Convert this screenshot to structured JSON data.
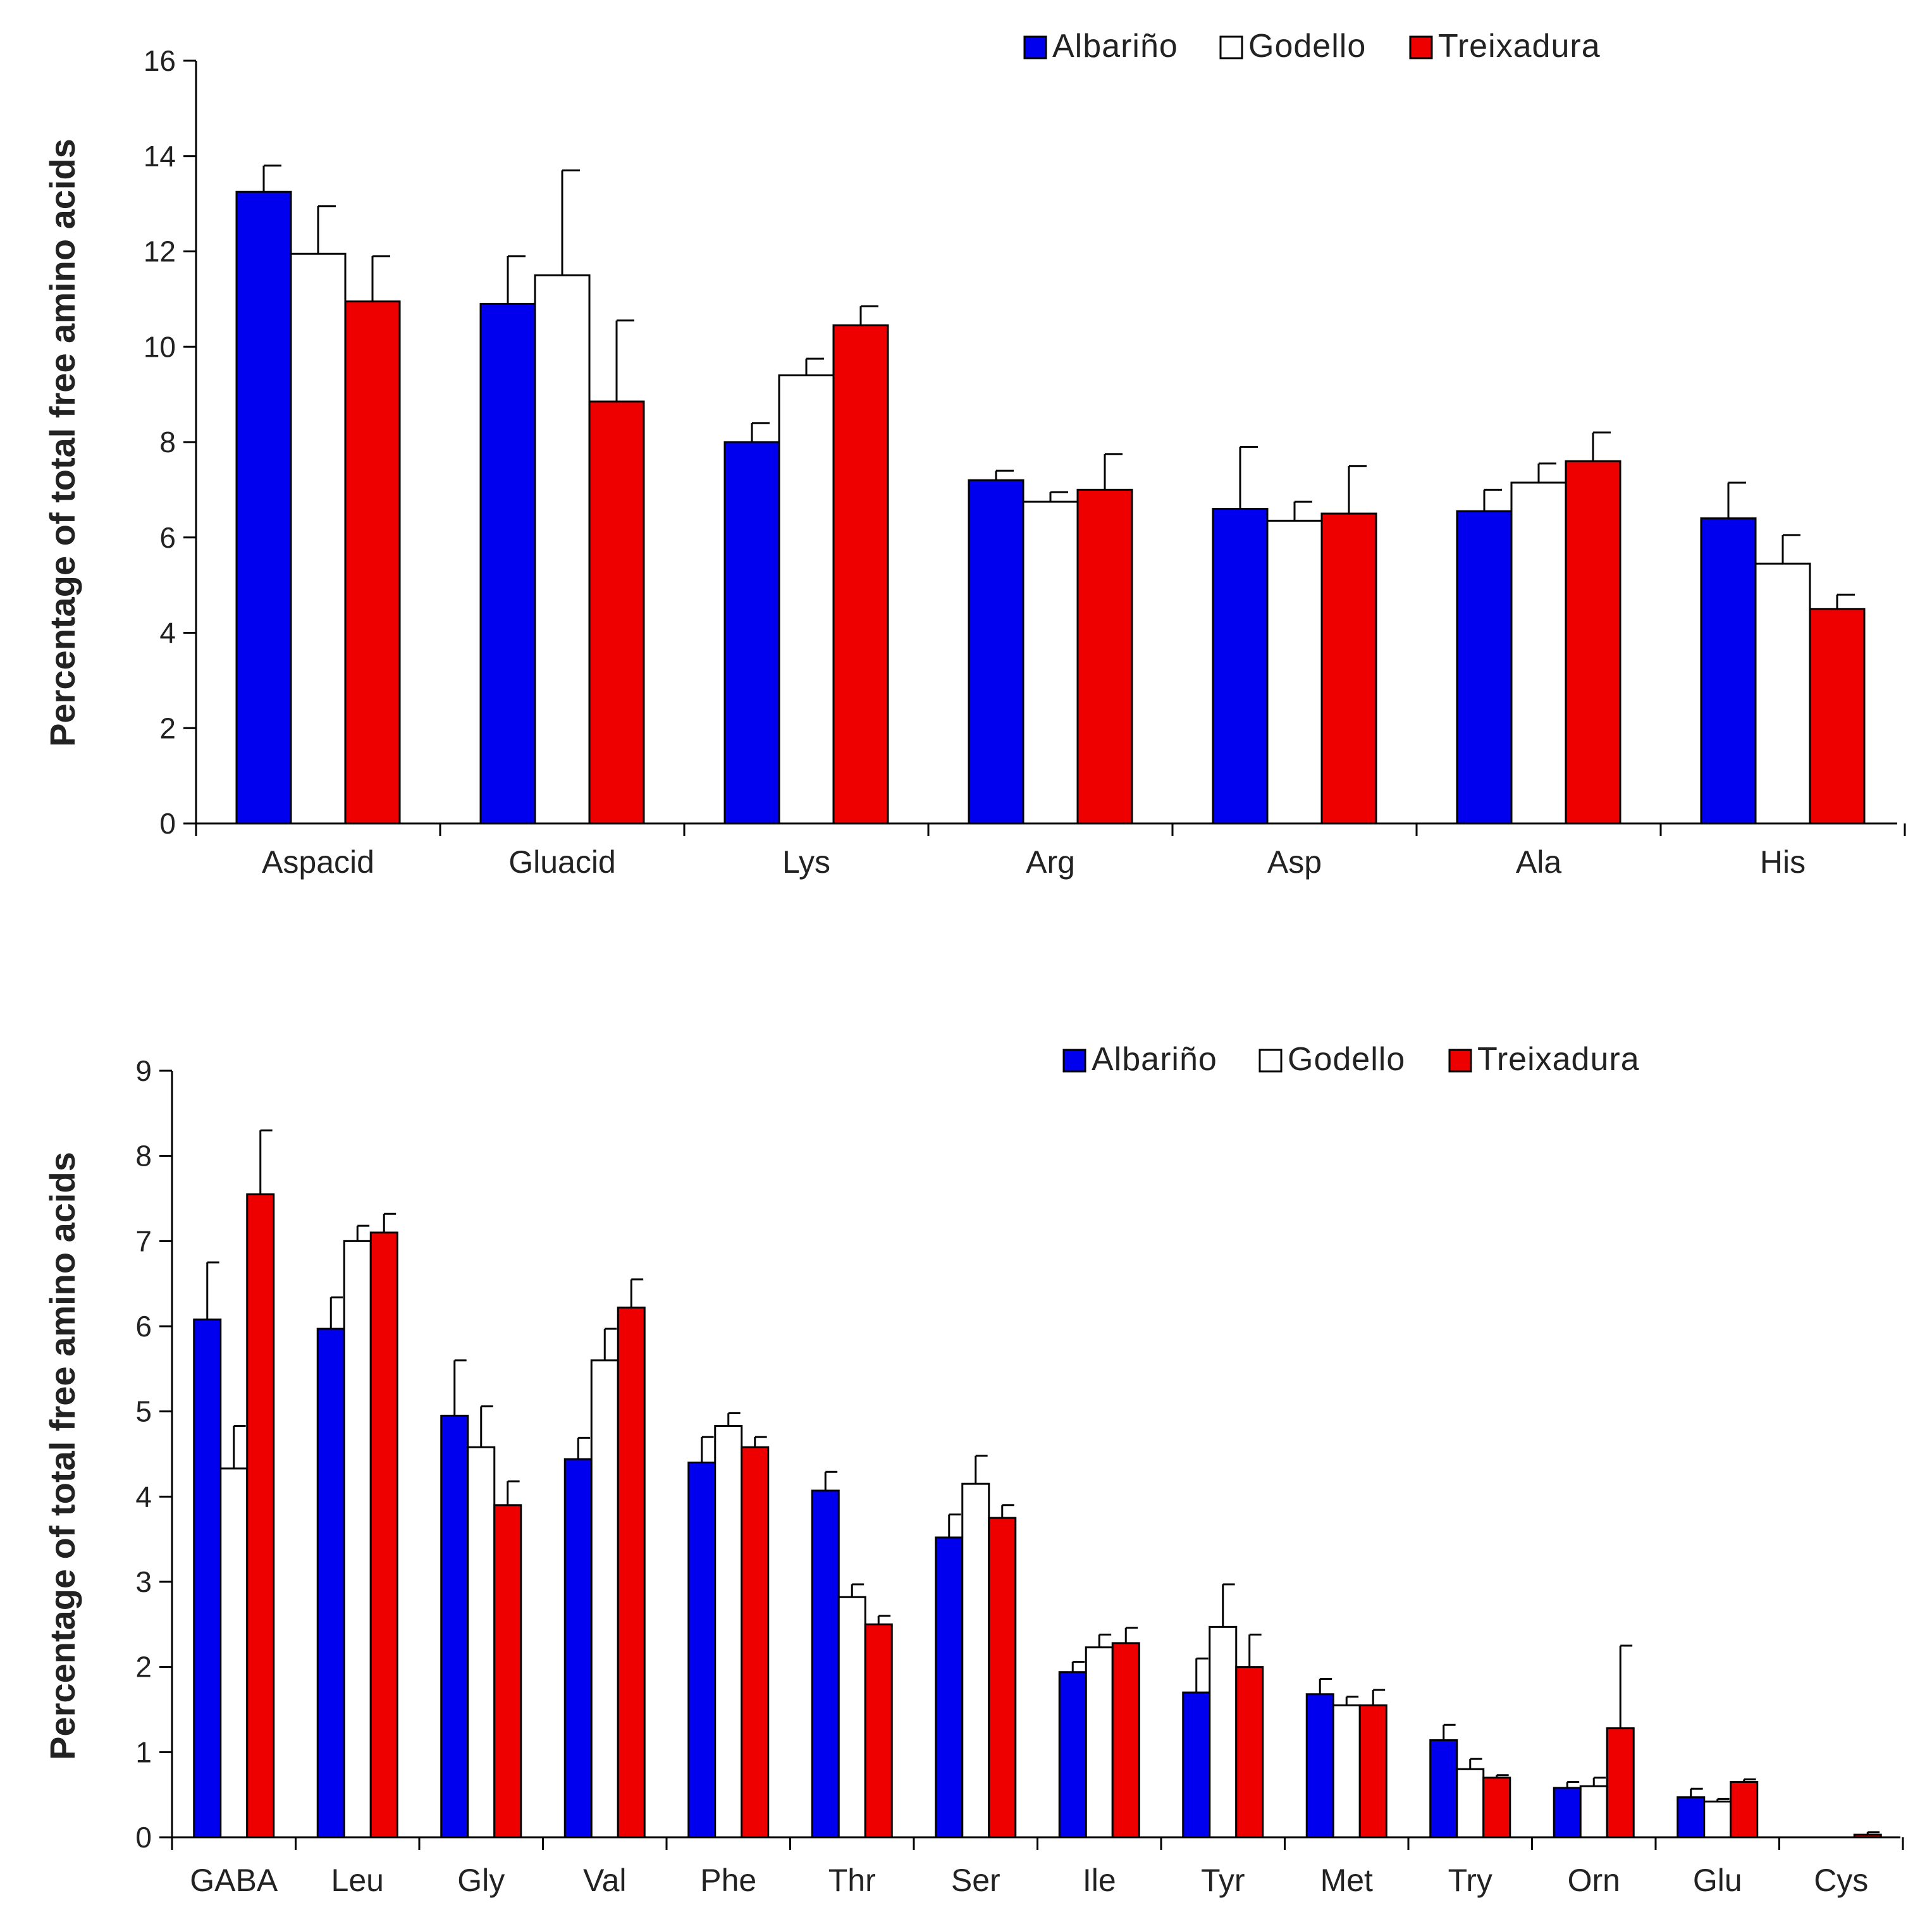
{
  "colors": {
    "Albariño": "#0000ee",
    "Godello": "#ffffff",
    "Treixadura": "#ee0000",
    "stroke": "#000000"
  },
  "chart_data": [
    {
      "type": "bar",
      "ylabel": "Percentage of total free amino acids",
      "ylim": [
        0,
        16
      ],
      "yticks": [
        0,
        2,
        4,
        6,
        8,
        10,
        12,
        14,
        16
      ],
      "legend": [
        "Albariño",
        "Godello",
        "Treixadura"
      ],
      "legend_position": "top-right",
      "categories": [
        "Aspacid",
        "Gluacid",
        "Lys",
        "Arg",
        "Asp",
        "Ala",
        "His"
      ],
      "series": [
        {
          "name": "Albariño",
          "values": [
            13.25,
            10.9,
            8.0,
            7.2,
            6.6,
            6.55,
            6.4
          ],
          "errors": [
            0.55,
            1.0,
            0.4,
            0.2,
            1.3,
            0.45,
            0.75
          ]
        },
        {
          "name": "Godello",
          "values": [
            11.95,
            11.5,
            9.4,
            6.75,
            6.35,
            7.15,
            5.45
          ],
          "errors": [
            1.0,
            2.2,
            0.35,
            0.2,
            0.4,
            0.4,
            0.6
          ]
        },
        {
          "name": "Treixadura",
          "values": [
            10.95,
            8.85,
            10.45,
            7.0,
            6.5,
            7.6,
            4.5
          ],
          "errors": [
            0.95,
            1.7,
            0.4,
            0.75,
            1.0,
            0.6,
            0.3
          ]
        }
      ]
    },
    {
      "type": "bar",
      "ylabel": "Percentage of total free amino acids",
      "ylim": [
        0,
        9
      ],
      "yticks": [
        0,
        1,
        2,
        3,
        4,
        5,
        6,
        7,
        8,
        9
      ],
      "legend": [
        "Albariño",
        "Godello",
        "Treixadura"
      ],
      "legend_position": "top-right",
      "categories": [
        "GABA",
        "Leu",
        "Gly",
        "Val",
        "Phe",
        "Thr",
        "Ser",
        "Ile",
        "Tyr",
        "Met",
        "Try",
        "Orn",
        "Glu",
        "Cys"
      ],
      "series": [
        {
          "name": "Albariño",
          "values": [
            6.08,
            5.97,
            4.95,
            4.44,
            4.4,
            4.07,
            3.52,
            1.94,
            1.7,
            1.68,
            1.14,
            0.58,
            0.47,
            0.0
          ],
          "errors": [
            0.67,
            0.37,
            0.65,
            0.25,
            0.3,
            0.22,
            0.27,
            0.12,
            0.4,
            0.18,
            0.18,
            0.07,
            0.1,
            0.0
          ]
        },
        {
          "name": "Godello",
          "values": [
            4.33,
            7.0,
            4.58,
            5.6,
            4.83,
            2.82,
            4.15,
            2.23,
            2.47,
            1.55,
            0.8,
            0.6,
            0.42,
            0.0
          ],
          "errors": [
            0.5,
            0.18,
            0.48,
            0.37,
            0.15,
            0.15,
            0.33,
            0.15,
            0.5,
            0.1,
            0.12,
            0.1,
            0.03,
            0.0
          ]
        },
        {
          "name": "Treixadura",
          "values": [
            7.55,
            7.1,
            3.9,
            6.22,
            4.58,
            2.5,
            3.75,
            2.28,
            2.0,
            1.55,
            0.7,
            1.28,
            0.65,
            0.03
          ],
          "errors": [
            0.75,
            0.22,
            0.28,
            0.33,
            0.12,
            0.1,
            0.15,
            0.18,
            0.38,
            0.18,
            0.03,
            0.97,
            0.03,
            0.03
          ]
        }
      ]
    }
  ]
}
